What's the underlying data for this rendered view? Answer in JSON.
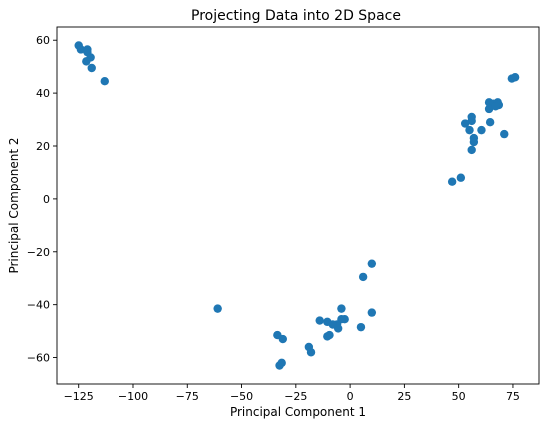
{
  "chart_data": {
    "type": "scatter",
    "title": "Projecting Data into 2D Space",
    "xlabel": "Principal Component 1",
    "ylabel": "Principal Component 2",
    "xlim": [
      -135,
      87
    ],
    "ylim": [
      -70,
      65
    ],
    "xticks": [
      -125,
      -100,
      -75,
      -50,
      -25,
      0,
      25,
      50,
      75
    ],
    "yticks": [
      -60,
      -40,
      -20,
      0,
      20,
      40,
      60
    ],
    "grid": false,
    "legend": "none",
    "marker_color": "#1f77b4",
    "series": [
      {
        "points": [
          [
            -125,
            58
          ],
          [
            -124,
            56.5
          ],
          [
            -121,
            56.5
          ],
          [
            -121,
            55.5
          ],
          [
            -119.5,
            53.5
          ],
          [
            -121.5,
            52
          ],
          [
            -119,
            49.5
          ],
          [
            -113,
            44.5
          ],
          [
            56,
            31
          ],
          [
            56,
            29.5
          ],
          [
            53,
            28.5
          ],
          [
            55,
            26
          ],
          [
            57,
            23
          ],
          [
            57,
            21.5
          ],
          [
            56,
            18.5
          ],
          [
            64,
            36.5
          ],
          [
            66,
            36
          ],
          [
            68,
            36.5
          ],
          [
            68.5,
            35.5
          ],
          [
            64,
            34
          ],
          [
            67,
            35
          ],
          [
            60.5,
            26
          ],
          [
            64.5,
            29
          ],
          [
            71,
            24.5
          ],
          [
            74.5,
            45.5
          ],
          [
            76,
            46
          ],
          [
            51,
            8
          ],
          [
            47,
            6.5
          ],
          [
            10,
            -24.5
          ],
          [
            6,
            -29.5
          ],
          [
            10,
            -43
          ],
          [
            5,
            -48.5
          ],
          [
            -4,
            -41.5
          ],
          [
            -2.5,
            -45.5
          ],
          [
            -4,
            -45.5
          ],
          [
            -6,
            -47.5
          ],
          [
            -5.5,
            -49
          ],
          [
            -8,
            -47.5
          ],
          [
            -10.5,
            -46.5
          ],
          [
            -14,
            -46
          ],
          [
            -9.5,
            -51.5
          ],
          [
            -10.5,
            -52
          ],
          [
            -19,
            -56
          ],
          [
            -18,
            -58
          ],
          [
            -33.5,
            -51.5
          ],
          [
            -31,
            -53
          ],
          [
            -32.5,
            -63
          ],
          [
            -31.5,
            -62
          ],
          [
            -61,
            -41.5
          ]
        ]
      }
    ]
  }
}
